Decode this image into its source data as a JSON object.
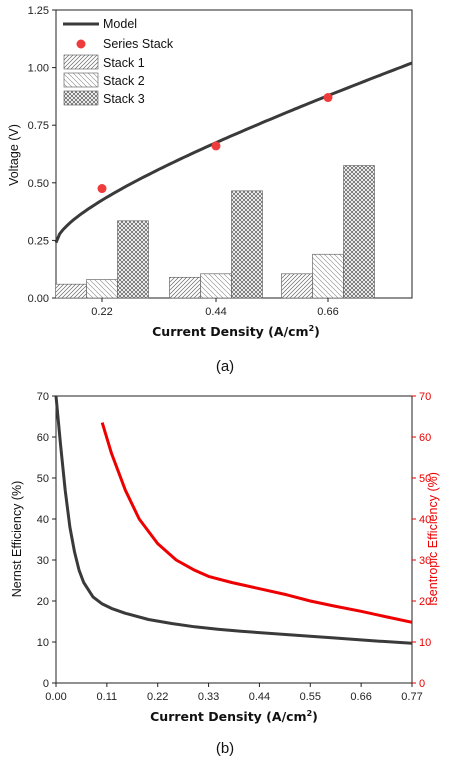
{
  "chart_data": [
    {
      "type": "bar",
      "caption": "(a)",
      "xlabel": "Current Density (A/cm",
      "xlabel_sup": "2",
      "xlabel_end": ")",
      "ylabel": "Voltage (V)",
      "categories": [
        "0.22",
        "0.44",
        "0.66"
      ],
      "ylim": [
        0,
        1.25
      ],
      "yticks": [
        "0.00",
        "0.25",
        "0.50",
        "0.75",
        "1.00",
        "1.25"
      ],
      "series": [
        {
          "name": "Stack 1",
          "values": [
            0.06,
            0.09,
            0.105
          ]
        },
        {
          "name": "Stack 2",
          "values": [
            0.08,
            0.105,
            0.19
          ]
        },
        {
          "name": "Stack 3",
          "values": [
            0.335,
            0.465,
            0.575
          ]
        }
      ],
      "points": {
        "name": "Series Stack",
        "values": [
          0.475,
          0.66,
          0.87
        ],
        "color": "#ee3b3b"
      },
      "model": {
        "name": "Model",
        "color": "#3a3a3a",
        "x": [
          0,
          1,
          2,
          3,
          4,
          5,
          6,
          7,
          8,
          9,
          10,
          11,
          12,
          13,
          14,
          15,
          16,
          17,
          18,
          19,
          20,
          21,
          22,
          23,
          24,
          25,
          26,
          27,
          28,
          29,
          30,
          31,
          32,
          33,
          34,
          35,
          36,
          37,
          38,
          39,
          40,
          41,
          42,
          43,
          44,
          45,
          46,
          47,
          48,
          49,
          50,
          51,
          52,
          53,
          54,
          55,
          56,
          57,
          58,
          59,
          60,
          61,
          62,
          63,
          64,
          65,
          66,
          67,
          68,
          69,
          70,
          71,
          72,
          73,
          74,
          75,
          76,
          77,
          78,
          79,
          80,
          81,
          82,
          83,
          84,
          85,
          86,
          87,
          88,
          89,
          90,
          91,
          92,
          93,
          94,
          95,
          96,
          97,
          98,
          99,
          100
        ]
      }
    },
    {
      "type": "line",
      "caption": "(b)",
      "xlabel": "Current Density (A/cm",
      "xlabel_sup": "2",
      "xlabel_end": ")",
      "ylabel_left": "Nernst Efficiency (%)",
      "ylabel_right": "Isentropic Efficiency (%)",
      "xlim": [
        0,
        0.77
      ],
      "ylim": [
        0,
        70
      ],
      "xticks": [
        "0.00",
        "0.11",
        "0.22",
        "0.33",
        "0.44",
        "0.55",
        "0.66",
        "0.77"
      ],
      "yticks": [
        "0",
        "10",
        "20",
        "30",
        "40",
        "50",
        "60",
        "70"
      ],
      "series": [
        {
          "axis": "left",
          "color": "#3a3a3a",
          "x": [
            0.0,
            0.01,
            0.02,
            0.03,
            0.04,
            0.05,
            0.06,
            0.08,
            0.1,
            0.12,
            0.15,
            0.2,
            0.25,
            0.3,
            0.35,
            0.4,
            0.5,
            0.6,
            0.7,
            0.77
          ],
          "y": [
            70,
            58,
            47,
            38,
            32,
            27.5,
            24.5,
            21,
            19.3,
            18.2,
            17,
            15.5,
            14.5,
            13.7,
            13.1,
            12.6,
            11.8,
            11.0,
            10.2,
            9.7
          ]
        },
        {
          "axis": "right",
          "color": "#ee0000",
          "x": [
            0.1,
            0.12,
            0.15,
            0.18,
            0.22,
            0.26,
            0.3,
            0.33,
            0.38,
            0.44,
            0.5,
            0.55,
            0.6,
            0.66,
            0.72,
            0.77
          ],
          "y": [
            63.5,
            56,
            47,
            40,
            34,
            30,
            27.5,
            26,
            24.5,
            23,
            21.5,
            20,
            18.8,
            17.5,
            16,
            14.8
          ]
        }
      ]
    }
  ],
  "colors": {
    "axis": "#222222",
    "series_stack": "#ee3b3b",
    "model": "#3a3a3a",
    "isentropic": "#ee0000"
  }
}
